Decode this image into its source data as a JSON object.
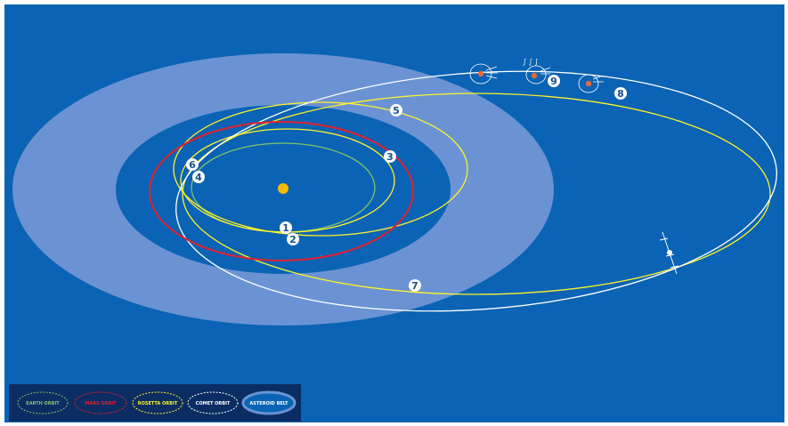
{
  "colors": {
    "background": "#0a63b4",
    "asteroid_belt": "#6b93d3",
    "inner_region": "#0a63b4",
    "sun": "#f5b900",
    "earth_orbit": "#7ec36a",
    "mars_orbit": "#e3202e",
    "rosetta_orbit": "#fff32a",
    "comet_orbit": "#ffffff",
    "legend_bg": "#0b2d63"
  },
  "markers": [
    {
      "id": "1",
      "label": "1"
    },
    {
      "id": "2",
      "label": "2"
    },
    {
      "id": "3",
      "label": "3"
    },
    {
      "id": "4",
      "label": "4"
    },
    {
      "id": "5",
      "label": "5"
    },
    {
      "id": "6",
      "label": "6"
    },
    {
      "id": "7",
      "label": "7"
    },
    {
      "id": "8",
      "label": "8"
    },
    {
      "id": "9",
      "label": "9"
    }
  ],
  "legend": [
    {
      "label": "EARTH ORBIT",
      "icon": "earth-orbit-legend-icon"
    },
    {
      "label": "MARS ORBIT",
      "icon": "mars-orbit-legend-icon"
    },
    {
      "label": "ROSETTA ORBIT",
      "icon": "rosetta-orbit-legend-icon"
    },
    {
      "label": "COMET ORBIT",
      "icon": "comet-orbit-legend-icon"
    },
    {
      "label": "ASTEROID BELT",
      "icon": "asteroid-belt-legend-icon"
    }
  ]
}
